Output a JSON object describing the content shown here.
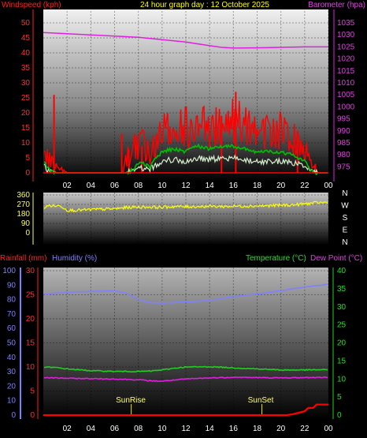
{
  "header": {
    "windspeed_label": "Windspeed (kph)",
    "title": "24 hour graph day : 12 October 2025",
    "barometer_label": "Barometer (hpa)"
  },
  "lower_header": {
    "rainfall_label": "Rainfall (mm)",
    "humidity_label": "Humidity (%)",
    "temperature_label": "Temperature (°C)",
    "dewpoint_label": "Dew Point (°C)"
  },
  "markers": {
    "sunrise": "SunRise",
    "sunset": "SunSet"
  },
  "colors": {
    "wind": "#ff0000",
    "gust_avg": "#00c000",
    "wind_light": "#d8f0d0",
    "barometer": "#e020e0",
    "direction": "#ffff00",
    "humidity": "#8080ff",
    "temperature": "#20d020",
    "dewpoint": "#e020e0",
    "rain": "#ff0000"
  },
  "chart_data": [
    {
      "type": "line",
      "name": "wind_barometer",
      "x_ticks": [
        "02",
        "04",
        "06",
        "08",
        "10",
        "12",
        "14",
        "16",
        "18",
        "20",
        "22",
        "00"
      ],
      "y_left_ticks": [
        "50",
        "45",
        "40",
        "35",
        "30",
        "25",
        "20",
        "15",
        "10",
        "5",
        "0"
      ],
      "y_right_ticks": [
        "1035",
        "1030",
        "1025",
        "1020",
        "1015",
        "1010",
        "1005",
        "1000",
        "995",
        "990",
        "985",
        "980",
        "975"
      ],
      "ylim_left": [
        0,
        50
      ],
      "ylim_right": [
        972.5,
        1035
      ],
      "series": [
        {
          "key": "barometer",
          "axis": "right",
          "x": [
            0,
            2,
            4,
            6,
            8,
            10,
            12,
            14,
            15,
            16,
            18,
            20,
            22,
            24
          ],
          "values": [
            1031,
            1030.5,
            1030,
            1029.5,
            1029,
            1028,
            1027,
            1025.5,
            1024.8,
            1024.5,
            1024.6,
            1024.8,
            1025,
            1025
          ]
        }
      ],
      "wind_envelope": {
        "x": [
          0,
          0.5,
          1,
          2,
          3,
          4,
          5,
          6,
          6.5,
          7,
          7.5,
          8,
          8.5,
          9,
          9.5,
          10,
          11,
          12,
          13,
          14,
          15,
          16,
          17,
          18,
          19,
          20,
          21,
          22,
          22.5,
          23,
          24
        ],
        "gust_max": [
          10,
          7,
          4,
          0,
          0,
          0,
          0,
          0,
          0,
          8,
          12,
          15,
          14,
          10,
          16,
          20,
          20,
          22,
          20,
          24,
          22,
          26,
          22,
          18,
          20,
          22,
          17,
          12,
          6,
          0,
          0
        ],
        "average": [
          4,
          1,
          0,
          0,
          0,
          0,
          0,
          0,
          0,
          0,
          1,
          3,
          3,
          2,
          5,
          7,
          8,
          7,
          9,
          8,
          9,
          9,
          8,
          7,
          7,
          7,
          6,
          4,
          1,
          0,
          0
        ],
        "lull": [
          2,
          0,
          0,
          0,
          0,
          0,
          0,
          0,
          0,
          0,
          0,
          1,
          1,
          0,
          2,
          3,
          3,
          3,
          3,
          3,
          3,
          3,
          3,
          2,
          2,
          2,
          2,
          1,
          0,
          0,
          0
        ]
      }
    },
    {
      "type": "line",
      "name": "wind_direction",
      "x_ticks": [
        "02",
        "04",
        "06",
        "08",
        "10",
        "12",
        "14",
        "16",
        "18",
        "20",
        "22",
        "00"
      ],
      "y_left_ticks": [
        "360",
        "270",
        "180",
        "90",
        "0"
      ],
      "y_right_labels": [
        "N",
        "W",
        "S",
        "E",
        "N"
      ],
      "ylim": [
        0,
        360
      ],
      "series": [
        {
          "key": "direction",
          "x": [
            0,
            0.5,
            1,
            1.5,
            2,
            3,
            4,
            5,
            6,
            7,
            8,
            9,
            10,
            11,
            12,
            13,
            14,
            15,
            16,
            17,
            18,
            19,
            20,
            21,
            22,
            23,
            24
          ],
          "values": [
            235,
            260,
            255,
            255,
            215,
            215,
            220,
            225,
            228,
            240,
            245,
            245,
            242,
            250,
            248,
            250,
            252,
            250,
            252,
            255,
            255,
            258,
            262,
            265,
            275,
            285,
            290
          ]
        }
      ]
    },
    {
      "type": "line",
      "name": "temp_humidity_rain",
      "x_ticks": [
        "02",
        "04",
        "06",
        "08",
        "10",
        "12",
        "14",
        "16",
        "18",
        "20",
        "22",
        "00"
      ],
      "rain_ticks": [
        "30",
        "25",
        "20",
        "15",
        "10",
        "5",
        "0"
      ],
      "humidity_ticks": [
        "100",
        "90",
        "80",
        "70",
        "60",
        "50",
        "40",
        "30",
        "20",
        "10",
        "0"
      ],
      "temp_ticks": [
        "40",
        "35",
        "30",
        "25",
        "20",
        "15",
        "10",
        "5",
        "0"
      ],
      "ylim_rain": [
        0,
        30
      ],
      "ylim_temp": [
        0,
        40
      ],
      "sunrise_hour": 7.4,
      "sunset_hour": 18.4,
      "series": [
        {
          "key": "humidity",
          "axis": "temp",
          "x": [
            0,
            2,
            4,
            6,
            7,
            8,
            9,
            10,
            12,
            14,
            16,
            18,
            20,
            22,
            24
          ],
          "values": [
            33.5,
            34,
            34.3,
            34.4,
            33.8,
            32,
            31.2,
            31,
            31.3,
            31.8,
            32.8,
            33.5,
            34.5,
            35.5,
            36.2
          ]
        },
        {
          "key": "temperature",
          "axis": "temp",
          "x": [
            0,
            1,
            2,
            4,
            6,
            8,
            9,
            10,
            11,
            12,
            14,
            16,
            18,
            20,
            22,
            24
          ],
          "values": [
            13.3,
            13.2,
            12.8,
            12.3,
            12.1,
            12.1,
            12.2,
            12.5,
            13,
            13.3,
            13.4,
            13.1,
            12.8,
            12.5,
            12.5,
            12.6
          ]
        },
        {
          "key": "dewpoint",
          "axis": "temp",
          "x": [
            0,
            2,
            4,
            6,
            8,
            9,
            10,
            12,
            14,
            16,
            18,
            20,
            22,
            24
          ],
          "values": [
            10.4,
            10.2,
            10.1,
            10,
            9.8,
            9.5,
            9.4,
            10,
            10.3,
            10.5,
            10.4,
            10.3,
            10.4,
            10.5
          ]
        },
        {
          "key": "rain",
          "axis": "rain",
          "x": [
            0,
            20.5,
            21,
            21.5,
            22,
            22.3,
            22.7,
            23,
            23.5,
            24
          ],
          "values": [
            0,
            0,
            0.2,
            0.5,
            0.8,
            1.5,
            1.5,
            2.2,
            2.2,
            2.2
          ]
        }
      ]
    }
  ]
}
